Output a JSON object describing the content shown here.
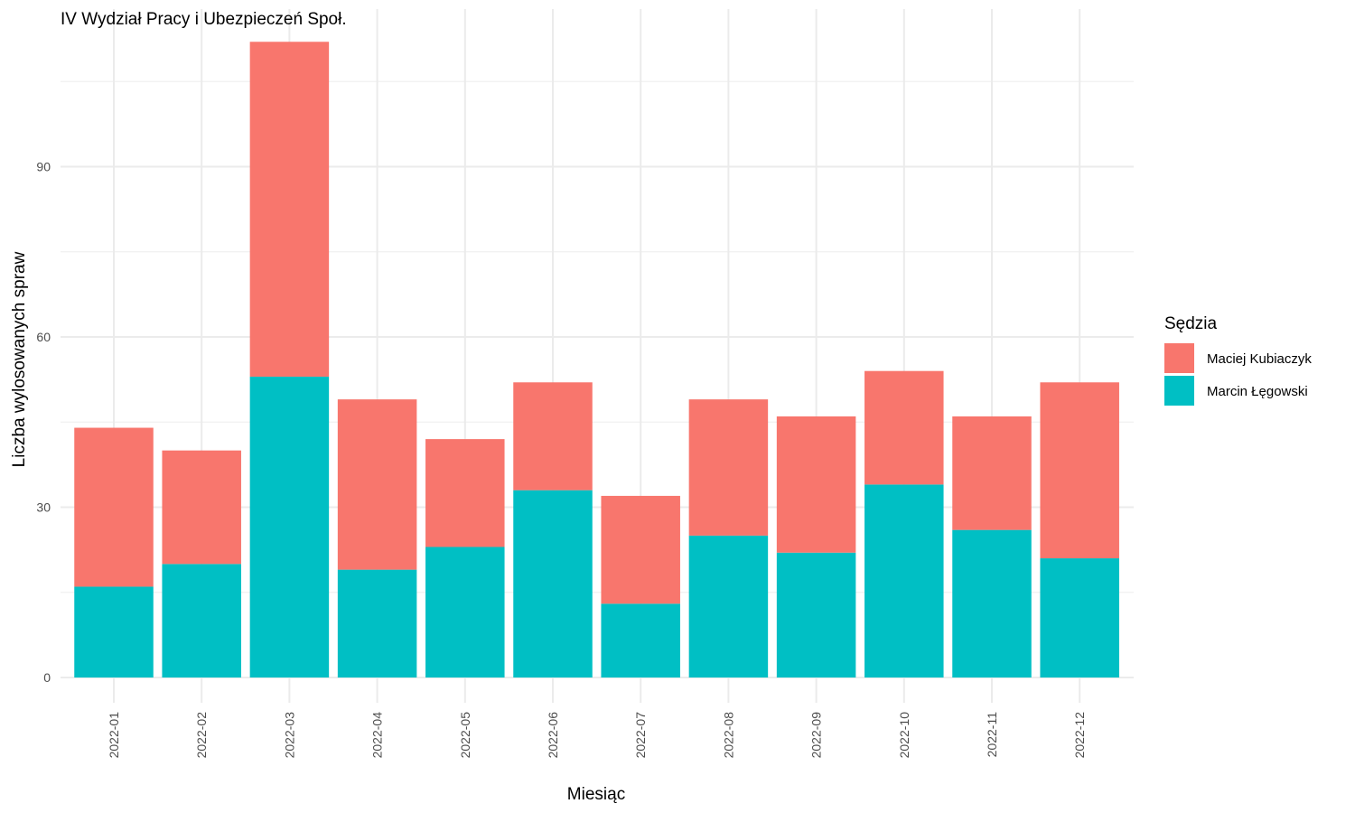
{
  "chart_data": {
    "type": "bar",
    "stacked": true,
    "title": "IV Wydział Pracy i Ubezpieczeń Społ.",
    "xlabel": "Miesiąc",
    "ylabel": "Liczba wylosowanych spraw",
    "ylim": [
      0,
      118
    ],
    "yticks": [
      0,
      30,
      60,
      90
    ],
    "grid": true,
    "legend_position": "right",
    "legend_title": "Sędzia",
    "categories": [
      "2022-01",
      "2022-02",
      "2022-03",
      "2022-04",
      "2022-05",
      "2022-06",
      "2022-07",
      "2022-08",
      "2022-09",
      "2022-10",
      "2022-11",
      "2022-12"
    ],
    "series": [
      {
        "name": "Marcin Łęgowski",
        "color": "#00BFC4",
        "values": [
          16,
          20,
          53,
          19,
          23,
          33,
          13,
          25,
          22,
          34,
          26,
          21
        ]
      },
      {
        "name": "Maciej Kubiaczyk",
        "color": "#F8766D",
        "values": [
          28,
          20,
          59,
          30,
          19,
          19,
          19,
          24,
          24,
          20,
          20,
          31
        ]
      }
    ],
    "legend_order": [
      "Maciej Kubiaczyk",
      "Marcin Łęgowski"
    ]
  }
}
